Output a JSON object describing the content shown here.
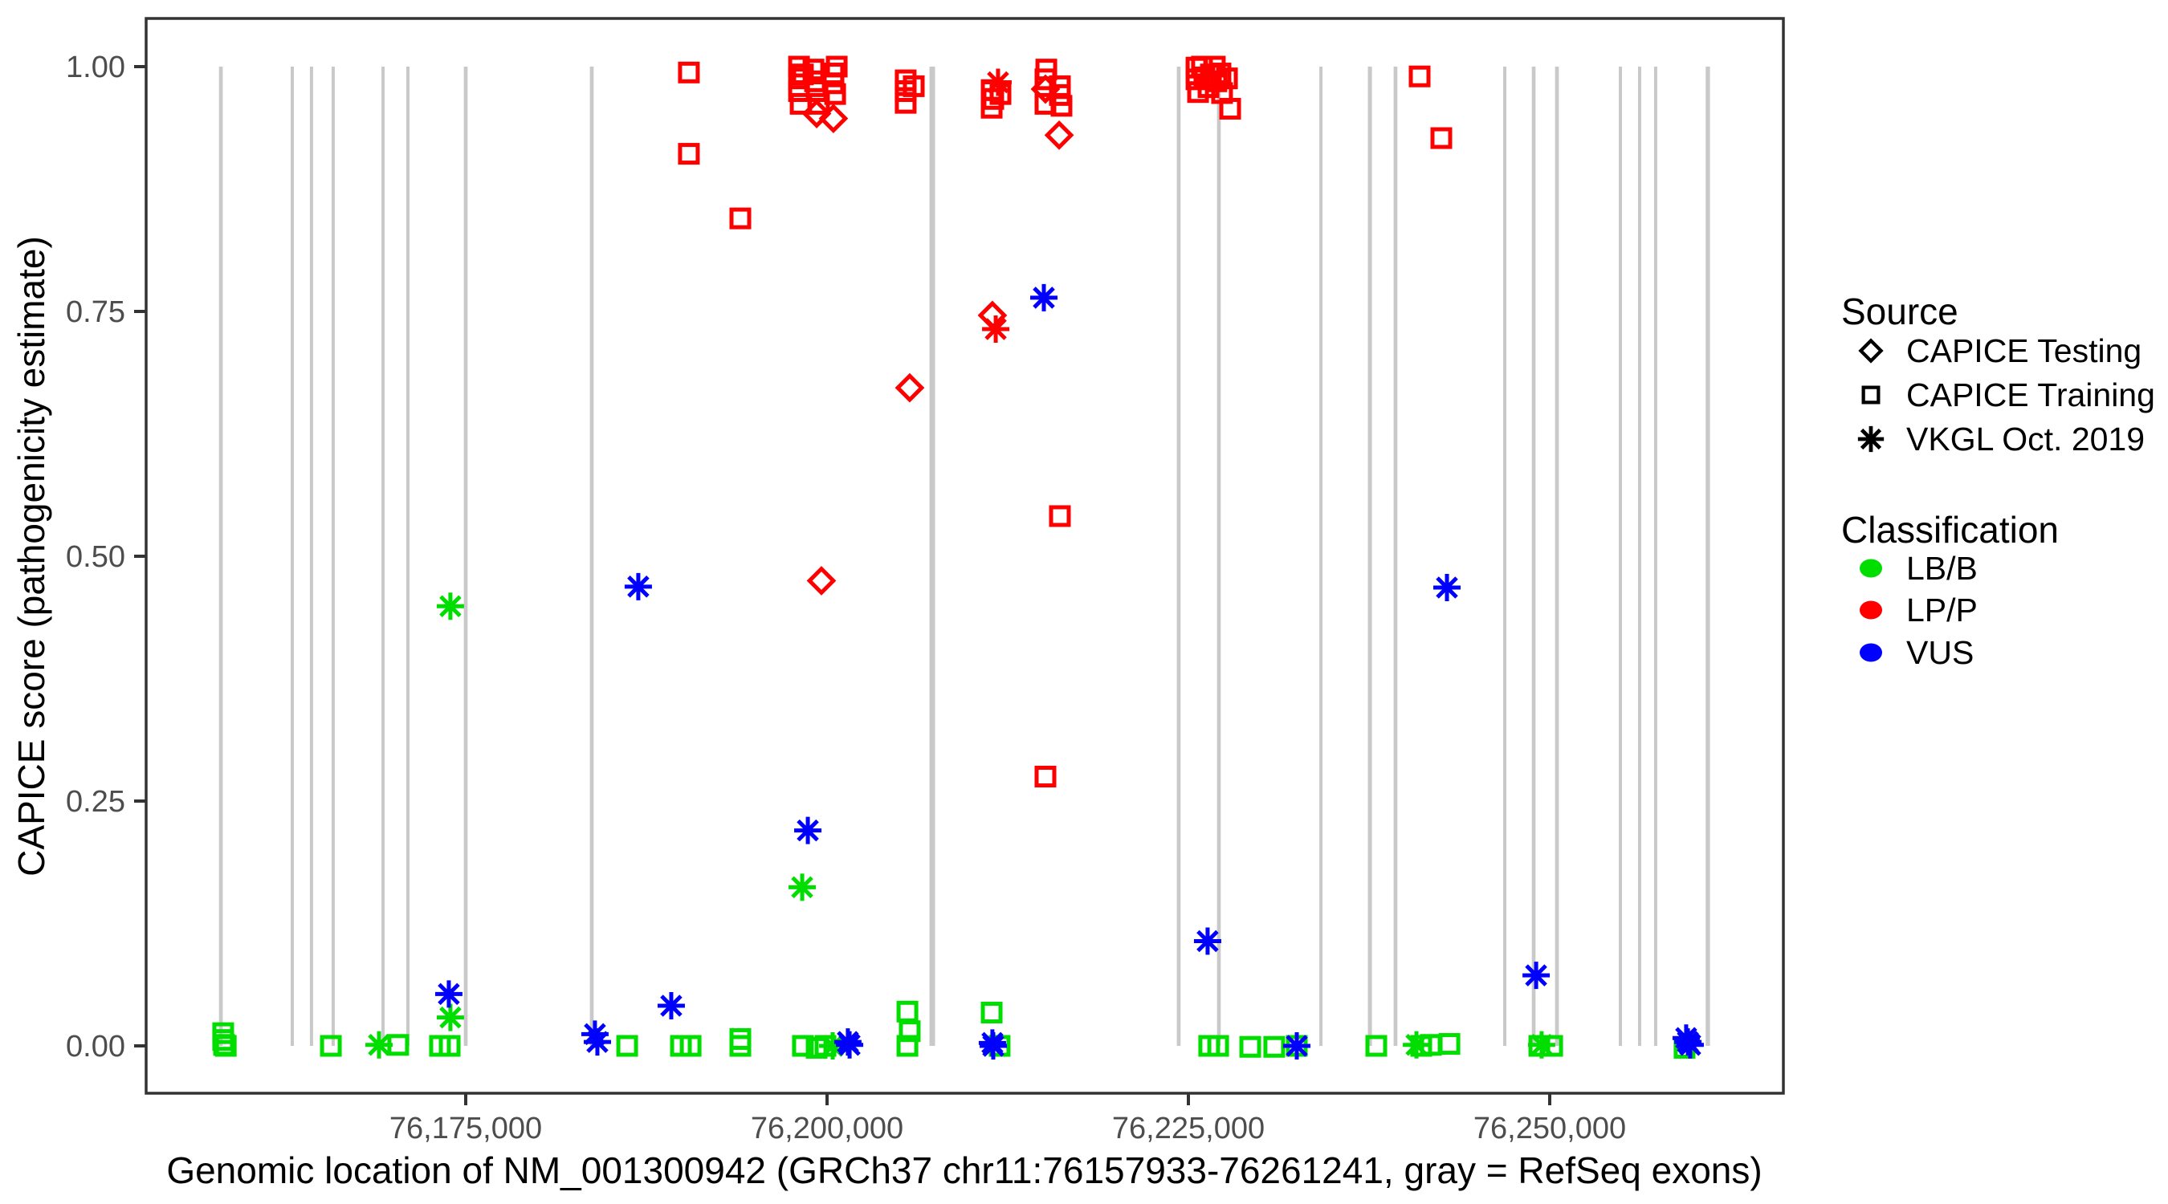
{
  "chart_data": {
    "type": "scatter",
    "title": "",
    "xlabel": "Genomic location of NM_001300942 (GRCh37 chr11:76157933-76261241, gray = RefSeq exons)",
    "ylabel": "CAPICE score (pathogenicity estimate)",
    "xlim": [
      76152900,
      76266200
    ],
    "ylim": [
      -0.048,
      1.049
    ],
    "grid": "off",
    "legend_position": "right",
    "x_ticks": [
      {
        "value": 76175000,
        "label": "76,175,000"
      },
      {
        "value": 76200000,
        "label": "76,200,000"
      },
      {
        "value": 76225000,
        "label": "76,225,000"
      },
      {
        "value": 76250000,
        "label": "76,250,000"
      }
    ],
    "y_ticks": [
      {
        "value": 0.0,
        "label": "0.00"
      },
      {
        "value": 0.25,
        "label": "0.25"
      },
      {
        "value": 0.5,
        "label": "0.50"
      },
      {
        "value": 0.75,
        "label": "0.75"
      },
      {
        "value": 1.0,
        "label": "1.00"
      }
    ],
    "colors": {
      "LB/B": "#00DE00",
      "LP/P": "#FF0000",
      "VUS": "#0000FF",
      "exon": "#C9C9C9",
      "axis_text": "#4D4D4D",
      "axis_line": "#333333"
    },
    "legend": {
      "source": {
        "title": "Source",
        "items": [
          {
            "label": "CAPICE Testing",
            "shape": "diamond"
          },
          {
            "label": "CAPICE Training",
            "shape": "square"
          },
          {
            "label": "VKGL Oct. 2019",
            "shape": "asterisk"
          }
        ]
      },
      "classification": {
        "title": "Classification",
        "items": [
          {
            "label": "LB/B",
            "color": "#00DE00"
          },
          {
            "label": "LP/P",
            "color": "#FF0000"
          },
          {
            "label": "VUS",
            "color": "#0000FF"
          }
        ]
      }
    },
    "exons_note": "gray vertical bars = RefSeq exons, each spanning score 0 to 1",
    "exons": [
      {
        "loc": 76158060,
        "width_bp": 260
      },
      {
        "loc": 76163000,
        "width_bp": 220
      },
      {
        "loc": 76164330,
        "width_bp": 220
      },
      {
        "loc": 76165830,
        "width_bp": 220
      },
      {
        "loc": 76169280,
        "width_bp": 220
      },
      {
        "loc": 76171000,
        "width_bp": 220
      },
      {
        "loc": 76175000,
        "width_bp": 260
      },
      {
        "loc": 76183720,
        "width_bp": 260
      },
      {
        "loc": 76207280,
        "width_bp": 390
      },
      {
        "loc": 76224330,
        "width_bp": 260
      },
      {
        "loc": 76227110,
        "width_bp": 260
      },
      {
        "loc": 76234170,
        "width_bp": 220
      },
      {
        "loc": 76237560,
        "width_bp": 280
      },
      {
        "loc": 76239330,
        "width_bp": 260
      },
      {
        "loc": 76246890,
        "width_bp": 220
      },
      {
        "loc": 76248890,
        "width_bp": 260
      },
      {
        "loc": 76250500,
        "width_bp": 260
      },
      {
        "loc": 76254890,
        "width_bp": 220
      },
      {
        "loc": 76256220,
        "width_bp": 220
      },
      {
        "loc": 76257330,
        "width_bp": 220
      },
      {
        "loc": 76260940,
        "width_bp": 300
      }
    ],
    "series": [
      {
        "name": "LB/B — CAPICE Training",
        "classification": "LB/B",
        "source": "CAPICE Training",
        "shape": "square",
        "color": "#00DE00",
        "points": [
          [
            76158220,
            0.013
          ],
          [
            76158220,
            0.006
          ],
          [
            76158280,
            0.001
          ],
          [
            76158400,
            0.0
          ],
          [
            76165670,
            0.0
          ],
          [
            76170330,
            0.001
          ],
          [
            76173220,
            0.0
          ],
          [
            76173890,
            0.0
          ],
          [
            76186170,
            0.0
          ],
          [
            76189890,
            0.0
          ],
          [
            76190560,
            0.0
          ],
          [
            76194000,
            0.007
          ],
          [
            76194000,
            0.0
          ],
          [
            76198330,
            0.0
          ],
          [
            76199280,
            -0.002
          ],
          [
            76199890,
            0.0
          ],
          [
            76205560,
            0.035
          ],
          [
            76205720,
            0.015
          ],
          [
            76205560,
            0.0
          ],
          [
            76211390,
            0.034
          ],
          [
            76211940,
            0.0
          ],
          [
            76226440,
            0.0
          ],
          [
            76227060,
            0.0
          ],
          [
            76229280,
            -0.001
          ],
          [
            76230940,
            -0.001
          ],
          [
            76232500,
            0.0
          ],
          [
            76238000,
            0.0
          ],
          [
            76241110,
            0.0
          ],
          [
            76241780,
            0.001
          ],
          [
            76243060,
            0.002
          ],
          [
            76249280,
            0.0
          ],
          [
            76250170,
            0.0
          ],
          [
            76259330,
            -0.002
          ]
        ]
      },
      {
        "name": "LB/B — VKGL Oct. 2019",
        "classification": "LB/B",
        "source": "VKGL Oct. 2019",
        "shape": "asterisk",
        "color": "#00DE00",
        "points": [
          [
            76169000,
            0.001
          ],
          [
            76173940,
            0.029
          ],
          [
            76173940,
            0.449
          ],
          [
            76198280,
            0.162
          ],
          [
            76200390,
            0.0
          ],
          [
            76240780,
            0.001
          ],
          [
            76249440,
            0.001
          ]
        ]
      },
      {
        "name": "LP/P — CAPICE Training",
        "classification": "LP/P",
        "source": "CAPICE Training",
        "shape": "square",
        "color": "#FF0000",
        "points": [
          [
            76190440,
            0.994
          ],
          [
            76190440,
            0.911
          ],
          [
            76194000,
            0.845
          ],
          [
            76198060,
            1.0
          ],
          [
            76198060,
            0.988
          ],
          [
            76198060,
            0.975
          ],
          [
            76198170,
            0.962
          ],
          [
            76198330,
            0.992
          ],
          [
            76199060,
            0.997
          ],
          [
            76199170,
            0.985
          ],
          [
            76199280,
            0.975
          ],
          [
            76199440,
            0.962
          ],
          [
            76200440,
            0.993
          ],
          [
            76200440,
            0.983
          ],
          [
            76200560,
            0.972
          ],
          [
            76200670,
            1.0
          ],
          [
            76205440,
            0.986
          ],
          [
            76205440,
            0.975
          ],
          [
            76205440,
            0.963
          ],
          [
            76206000,
            0.98
          ],
          [
            76211390,
            0.976
          ],
          [
            76211500,
            0.967
          ],
          [
            76212000,
            0.972
          ],
          [
            76211390,
            0.958
          ],
          [
            76215170,
            0.997
          ],
          [
            76215110,
            0.987
          ],
          [
            76216110,
            0.98
          ],
          [
            76216110,
            0.971
          ],
          [
            76215110,
            0.962
          ],
          [
            76216220,
            0.96
          ],
          [
            76216110,
            0.541
          ],
          [
            76215110,
            0.275
          ],
          [
            76225560,
            0.999
          ],
          [
            76225560,
            0.987
          ],
          [
            76225670,
            0.974
          ],
          [
            76225940,
            1.0
          ],
          [
            76226110,
            0.989
          ],
          [
            76226390,
            0.979
          ],
          [
            76226560,
            0.992
          ],
          [
            76226830,
            1.0
          ],
          [
            76226940,
            0.985
          ],
          [
            76227220,
            0.993
          ],
          [
            76227330,
            0.973
          ],
          [
            76227670,
            0.988
          ],
          [
            76227890,
            0.957
          ],
          [
            76241000,
            0.99
          ],
          [
            76242500,
            0.927
          ]
        ]
      },
      {
        "name": "LP/P — CAPICE Testing",
        "classification": "LP/P",
        "source": "CAPICE Testing",
        "shape": "diamond",
        "color": "#FF0000",
        "points": [
          [
            76199280,
            0.952
          ],
          [
            76200440,
            0.947
          ],
          [
            76199610,
            0.475
          ],
          [
            76205720,
            0.672
          ],
          [
            76211440,
            0.746
          ],
          [
            76215110,
            0.977
          ],
          [
            76216060,
            0.93
          ]
        ]
      },
      {
        "name": "LP/P — VKGL Oct. 2019",
        "classification": "LP/P",
        "source": "VKGL Oct. 2019",
        "shape": "asterisk",
        "color": "#FF0000",
        "points": [
          [
            76211830,
            0.984
          ],
          [
            76211670,
            0.732
          ]
        ]
      },
      {
        "name": "VUS — VKGL Oct. 2019",
        "classification": "VUS",
        "source": "VKGL Oct. 2019",
        "shape": "asterisk",
        "color": "#0000FF",
        "points": [
          [
            76173830,
            0.053
          ],
          [
            76183940,
            0.012
          ],
          [
            76184110,
            0.004
          ],
          [
            76186940,
            0.469
          ],
          [
            76189220,
            0.041
          ],
          [
            76198670,
            0.22
          ],
          [
            76201440,
            0.004
          ],
          [
            76201560,
            0.001
          ],
          [
            76211440,
            0.003
          ],
          [
            76211500,
            0.0
          ],
          [
            76215000,
            0.764
          ],
          [
            76226330,
            0.107
          ],
          [
            76232500,
            0.0
          ],
          [
            76242890,
            0.468
          ],
          [
            76249060,
            0.072
          ],
          [
            76259440,
            0.008
          ],
          [
            76259560,
            0.004
          ],
          [
            76259720,
            0.001
          ]
        ]
      }
    ]
  }
}
